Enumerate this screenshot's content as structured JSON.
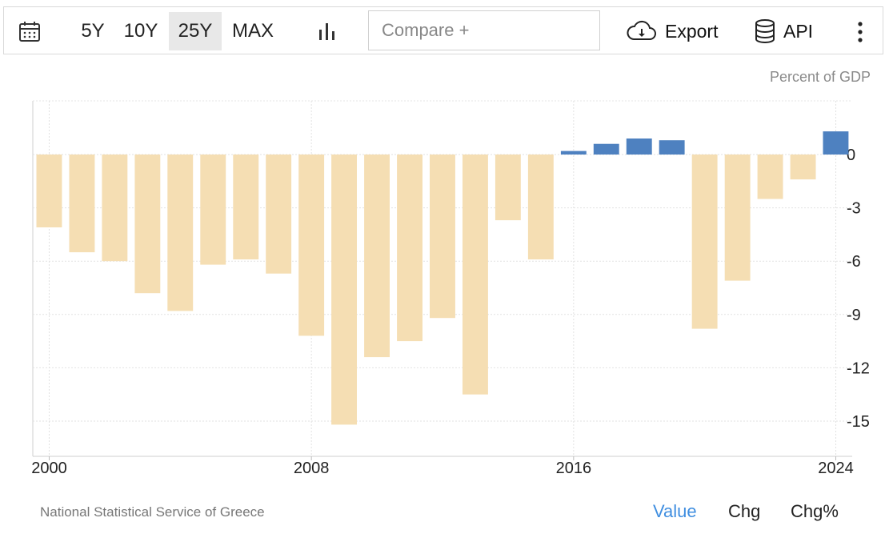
{
  "toolbar": {
    "ranges": [
      "5Y",
      "10Y",
      "25Y",
      "MAX"
    ],
    "active_range": "25Y",
    "compare_placeholder": "Compare +",
    "export_label": "Export",
    "api_label": "API"
  },
  "unit_label": "Percent of GDP",
  "source": "National Statistical Service of Greece",
  "footer_tabs": [
    "Value",
    "Chg",
    "Chg%"
  ],
  "active_footer_tab": "Value",
  "colors": {
    "negative": "#f5deb3",
    "positive": "#4e81c0",
    "active_tab": "#3f8ee0"
  },
  "chart_data": {
    "type": "bar",
    "x": [
      2000,
      2001,
      2002,
      2003,
      2004,
      2005,
      2006,
      2007,
      2008,
      2009,
      2010,
      2011,
      2012,
      2013,
      2014,
      2015,
      2016,
      2017,
      2018,
      2019,
      2020,
      2021,
      2022,
      2023,
      2024
    ],
    "values": [
      -4.1,
      -5.5,
      -6.0,
      -7.8,
      -8.8,
      -6.2,
      -5.9,
      -6.7,
      -10.2,
      -15.2,
      -11.4,
      -10.5,
      -9.2,
      -13.5,
      -3.7,
      -5.9,
      0.2,
      0.6,
      0.9,
      0.8,
      -9.8,
      -7.1,
      -2.5,
      -1.4,
      1.3
    ],
    "x_ticks": [
      "2000",
      "2008",
      "2016",
      "2024"
    ],
    "y_ticks": [
      0,
      -3,
      -6,
      -9,
      -12,
      -15
    ],
    "ylim": [
      -17,
      3
    ],
    "grid": true,
    "ylabel": "Percent of GDP"
  }
}
